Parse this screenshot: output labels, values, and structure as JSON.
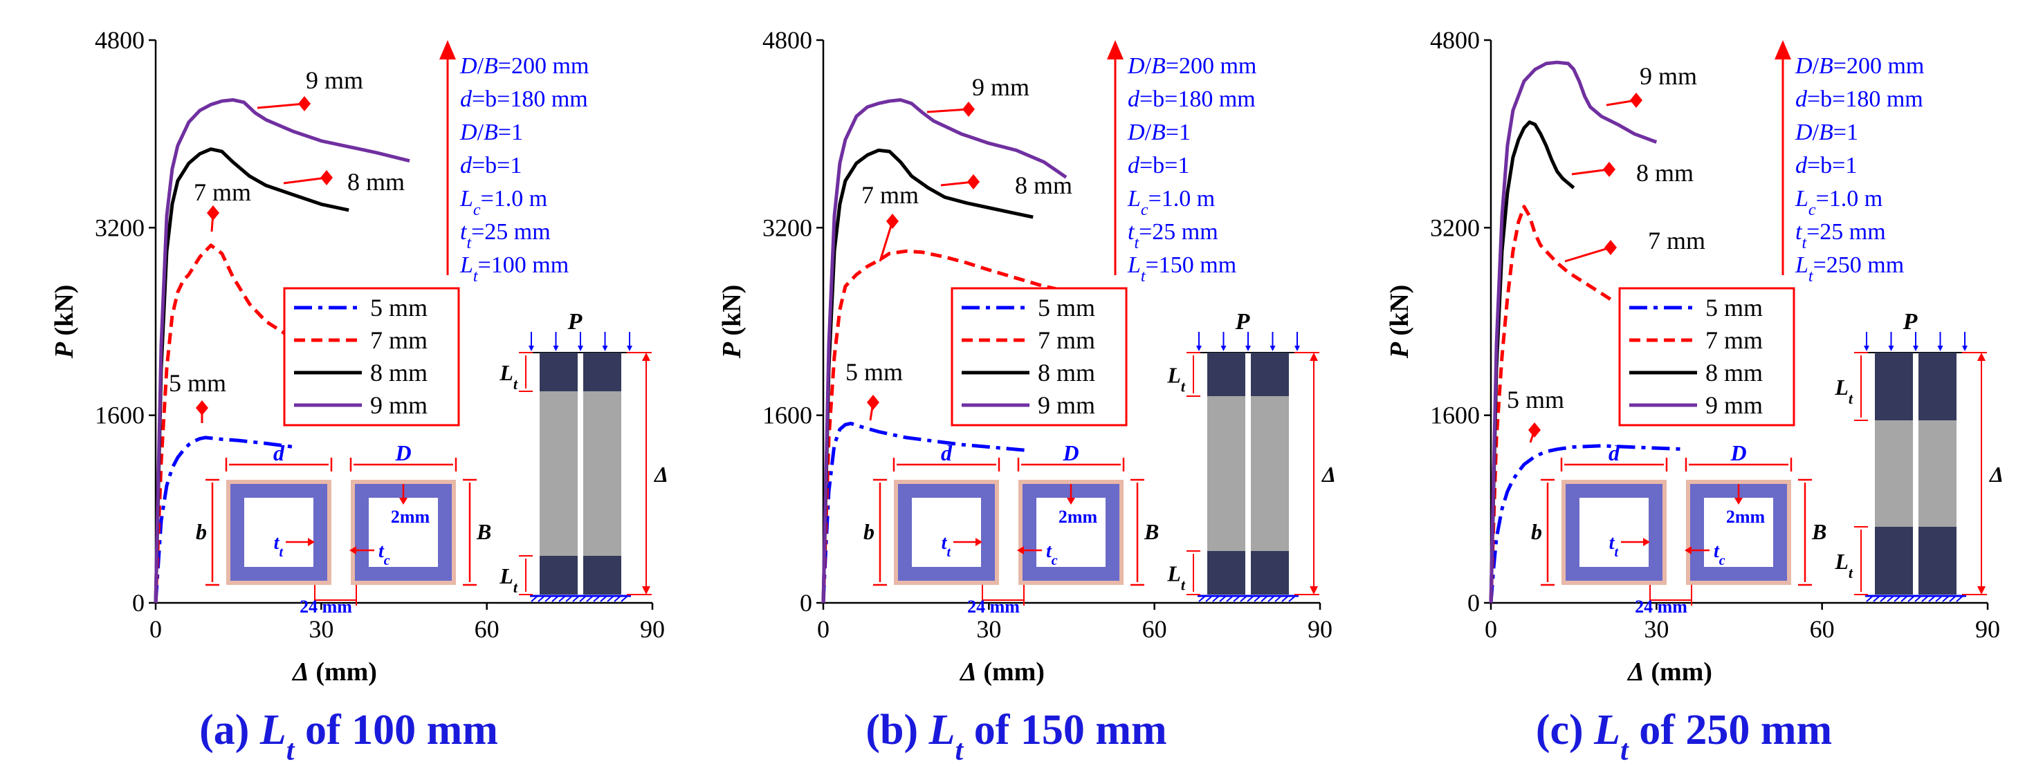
{
  "figure": {
    "common": {
      "y_label_italic": "P",
      "y_label_rest": " (kN)",
      "x_label_italic": "Δ",
      "x_label_rest": " (mm)",
      "y_ticks": [
        "0",
        "1600",
        "3200",
        "4800"
      ],
      "x_ticks": [
        "0",
        "30",
        "60",
        "90"
      ],
      "legend": [
        "5 mm",
        "7 mm",
        "8 mm",
        "9 mm"
      ],
      "section": {
        "d": "d",
        "D": "D",
        "b": "b",
        "B": "B",
        "tt_main": "t",
        "tt_sub": "t",
        "tc_main": "t",
        "tc_sub": "c",
        "gap": "2mm",
        "weld": "24 mm"
      },
      "column": {
        "P": "P",
        "Lt_main": "L",
        "Lt_sub": "t",
        "delta": "Δ"
      }
    },
    "panels": [
      {
        "caption_prefix": "(a) ",
        "caption_italic": "L",
        "caption_sub": "t",
        "caption_suffix": " of 100 mm",
        "params": [
          "D/B=200 mm",
          "d=b=180 mm",
          "D/B=1",
          "d=b=1",
          "Lc=1.0 m",
          "tt=25 mm",
          "Lt=100 mm"
        ],
        "annotations": [
          "9 mm",
          "8 mm",
          "7 mm",
          "5 mm"
        ]
      },
      {
        "caption_prefix": "(b) ",
        "caption_italic": "L",
        "caption_sub": "t",
        "caption_suffix": " of 150 mm",
        "params": [
          "D/B=200 mm",
          "d=b=180 mm",
          "D/B=1",
          "d=b=1",
          "Lc=1.0 m",
          "tt=25 mm",
          "Lt=150 mm"
        ],
        "annotations": [
          "9 mm",
          "8 mm",
          "7 mm",
          "5 mm"
        ]
      },
      {
        "caption_prefix": "(c) ",
        "caption_italic": "L",
        "caption_sub": "t",
        "caption_suffix": " of 250 mm",
        "params": [
          "D/B=200 mm",
          "d=b=180 mm",
          "D/B=1",
          "d=b=1",
          "Lc=1.0 m",
          "tt=25 mm",
          "Lt=250 mm"
        ],
        "annotations": [
          "9 mm",
          "7 mm",
          "8 mm",
          "5 mm"
        ]
      }
    ]
  },
  "chart_data": [
    {
      "type": "line",
      "title": "(a) Lt of 100 mm",
      "xlabel": "Δ (mm)",
      "ylabel": "P (kN)",
      "xlim": [
        0,
        90
      ],
      "ylim": [
        0,
        4800
      ],
      "series": [
        {
          "name": "5 mm",
          "color": "#0000ff",
          "dash": "dashdot",
          "x": [
            0,
            0.5,
            1,
            2,
            3,
            4,
            5,
            6,
            7,
            8,
            9,
            10,
            12,
            15,
            20,
            25
          ],
          "y": [
            0,
            350,
            700,
            1000,
            1150,
            1240,
            1300,
            1350,
            1380,
            1400,
            1410,
            1405,
            1395,
            1385,
            1360,
            1330
          ]
        },
        {
          "name": "7 mm",
          "color": "#ff0000",
          "dash": "dash",
          "x": [
            0,
            0.5,
            1,
            2,
            3,
            4,
            5,
            6,
            8,
            10,
            12,
            14,
            17,
            20,
            24
          ],
          "y": [
            0,
            600,
            1200,
            2000,
            2450,
            2650,
            2750,
            2800,
            2950,
            3050,
            2980,
            2780,
            2550,
            2400,
            2280
          ]
        },
        {
          "name": "8 mm",
          "color": "#000000",
          "dash": "solid",
          "x": [
            0,
            0.5,
            1,
            2,
            3,
            4,
            6,
            8,
            10,
            12,
            14,
            17,
            20,
            25,
            30,
            35
          ],
          "y": [
            0,
            1000,
            2000,
            3000,
            3400,
            3600,
            3750,
            3830,
            3870,
            3850,
            3760,
            3640,
            3560,
            3480,
            3400,
            3350
          ]
        },
        {
          "name": "9 mm",
          "color": "#7030a0",
          "dash": "solid",
          "x": [
            0,
            0.5,
            1,
            2,
            3,
            4,
            6,
            8,
            10,
            12,
            14,
            16,
            18,
            20,
            25,
            30,
            35,
            40,
            46
          ],
          "y": [
            0,
            1100,
            2200,
            3300,
            3700,
            3900,
            4100,
            4200,
            4250,
            4280,
            4290,
            4270,
            4180,
            4120,
            4020,
            3940,
            3890,
            3840,
            3770
          ]
        }
      ]
    },
    {
      "type": "line",
      "title": "(b) Lt of 150 mm",
      "xlabel": "Δ (mm)",
      "ylabel": "P (kN)",
      "xlim": [
        0,
        90
      ],
      "ylim": [
        0,
        4800
      ],
      "series": [
        {
          "name": "5 mm",
          "color": "#0000ff",
          "dash": "dashdot",
          "x": [
            0,
            0.5,
            1,
            2,
            3,
            4,
            5,
            7,
            10,
            15,
            20,
            25,
            30,
            37
          ],
          "y": [
            0,
            500,
            950,
            1350,
            1480,
            1520,
            1530,
            1500,
            1460,
            1410,
            1380,
            1350,
            1330,
            1300
          ]
        },
        {
          "name": "7 mm",
          "color": "#ff0000",
          "dash": "dash",
          "x": [
            0,
            0.5,
            1,
            2,
            3,
            4,
            6,
            8,
            10,
            12,
            15,
            18,
            22,
            26,
            30,
            35,
            40,
            45
          ],
          "y": [
            0,
            700,
            1400,
            2100,
            2500,
            2700,
            2800,
            2870,
            2920,
            2980,
            3000,
            2990,
            2950,
            2900,
            2840,
            2770,
            2700,
            2650
          ]
        },
        {
          "name": "8 mm",
          "color": "#000000",
          "dash": "solid",
          "x": [
            0,
            0.5,
            1,
            2,
            3,
            4,
            6,
            8,
            10,
            12,
            14,
            16,
            19,
            22,
            26,
            30,
            34,
            38
          ],
          "y": [
            0,
            1000,
            2000,
            3000,
            3400,
            3600,
            3750,
            3820,
            3860,
            3850,
            3760,
            3640,
            3540,
            3460,
            3410,
            3370,
            3330,
            3290
          ]
        },
        {
          "name": "9 mm",
          "color": "#7030a0",
          "dash": "solid",
          "x": [
            0,
            0.5,
            1,
            2,
            3,
            4,
            6,
            8,
            10,
            12,
            14,
            16,
            18,
            20,
            25,
            30,
            35,
            40,
            44
          ],
          "y": [
            0,
            1100,
            2200,
            3300,
            3750,
            3950,
            4150,
            4230,
            4260,
            4280,
            4290,
            4260,
            4180,
            4110,
            4000,
            3920,
            3860,
            3760,
            3630
          ]
        }
      ]
    },
    {
      "type": "line",
      "title": "(c) Lt of 250 mm",
      "xlabel": "Δ (mm)",
      "ylabel": "P (kN)",
      "xlim": [
        0,
        90
      ],
      "ylim": [
        0,
        4800
      ],
      "series": [
        {
          "name": "5 mm",
          "color": "#0000ff",
          "dash": "dashdot",
          "x": [
            0,
            0.5,
            1,
            2,
            3,
            4,
            5,
            6,
            8,
            10,
            12,
            15,
            20,
            25,
            30,
            35
          ],
          "y": [
            0,
            300,
            550,
            800,
            950,
            1050,
            1120,
            1180,
            1250,
            1290,
            1310,
            1330,
            1340,
            1330,
            1320,
            1310
          ]
        },
        {
          "name": "7 mm",
          "color": "#ff0000",
          "dash": "dash",
          "x": [
            0,
            0.5,
            1,
            2,
            3,
            4,
            5,
            6,
            7,
            8,
            9,
            10,
            12,
            14,
            16,
            18,
            20,
            22
          ],
          "y": [
            0,
            700,
            1400,
            2100,
            2600,
            3000,
            3250,
            3380,
            3300,
            3150,
            3050,
            3000,
            2900,
            2820,
            2760,
            2700,
            2640,
            2580
          ]
        },
        {
          "name": "8 mm",
          "color": "#000000",
          "dash": "solid",
          "x": [
            0,
            0.5,
            1,
            2,
            3,
            4,
            5,
            6,
            7,
            8,
            9,
            10,
            11,
            12,
            13,
            14,
            15
          ],
          "y": [
            0,
            1000,
            2000,
            3000,
            3500,
            3800,
            3950,
            4050,
            4100,
            4080,
            4000,
            3900,
            3780,
            3680,
            3620,
            3580,
            3540
          ]
        },
        {
          "name": "9 mm",
          "color": "#7030a0",
          "dash": "solid",
          "x": [
            0,
            0.5,
            1,
            2,
            3,
            4,
            6,
            8,
            10,
            12,
            14,
            15,
            16,
            17,
            18,
            20,
            23,
            26,
            30
          ],
          "y": [
            0,
            1100,
            2200,
            3300,
            3900,
            4200,
            4450,
            4550,
            4600,
            4610,
            4600,
            4550,
            4450,
            4320,
            4230,
            4150,
            4080,
            4000,
            3930
          ]
        }
      ]
    }
  ]
}
